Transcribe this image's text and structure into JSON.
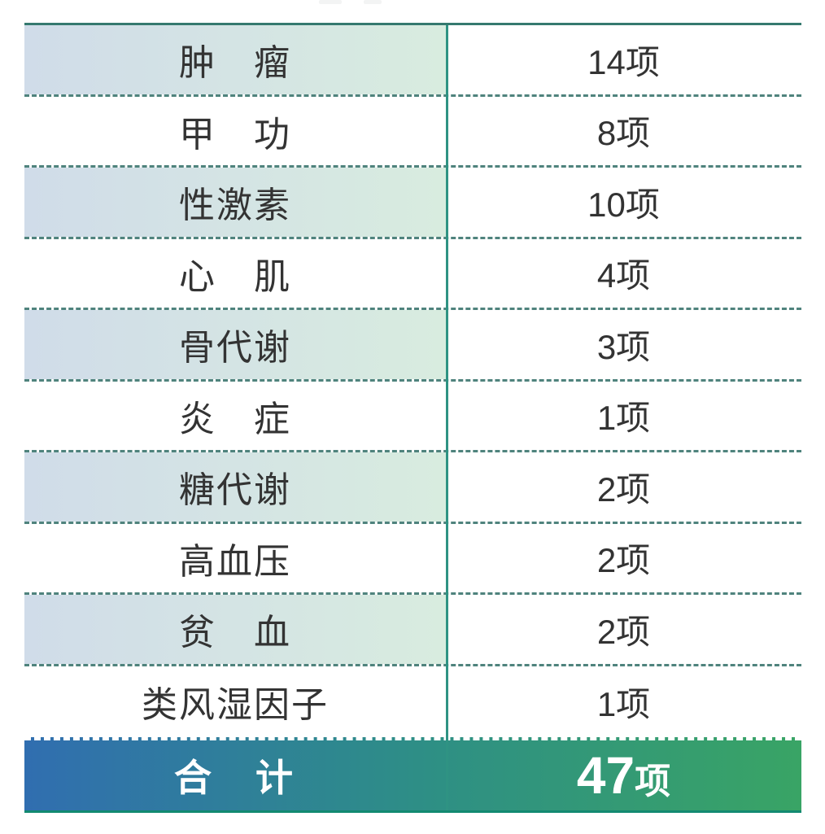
{
  "chart_data": {
    "type": "table",
    "title": "",
    "columns": [
      "category",
      "item_count"
    ],
    "rows": [
      {
        "label": "肿　瘤",
        "count": "14项",
        "count_value": 14,
        "shaded": true
      },
      {
        "label": "甲　功",
        "count": "8项",
        "count_value": 8,
        "shaded": false
      },
      {
        "label": "性激素",
        "count": "10项",
        "count_value": 10,
        "shaded": true
      },
      {
        "label": "心　肌",
        "count": "4项",
        "count_value": 4,
        "shaded": false
      },
      {
        "label": "骨代谢",
        "count": "3项",
        "count_value": 3,
        "shaded": true
      },
      {
        "label": "炎　症",
        "count": "1项",
        "count_value": 1,
        "shaded": false
      },
      {
        "label": "糖代谢",
        "count": "2项",
        "count_value": 2,
        "shaded": true
      },
      {
        "label": "高血压",
        "count": "2项",
        "count_value": 2,
        "shaded": false
      },
      {
        "label": "贫　血",
        "count": "2项",
        "count_value": 2,
        "shaded": true
      },
      {
        "label": "类风湿因子",
        "count": "1项",
        "count_value": 1,
        "shaded": false
      }
    ],
    "total": {
      "label": "合　计",
      "count_number": "47",
      "count_unit": "项",
      "count_value": 47
    }
  },
  "table": {
    "rows": [
      {
        "label": "肿　瘤",
        "count": "14项"
      },
      {
        "label": "甲　功",
        "count": "8项"
      },
      {
        "label": "性激素",
        "count": "10项"
      },
      {
        "label": "心　肌",
        "count": "4项"
      },
      {
        "label": "骨代谢",
        "count": "3项"
      },
      {
        "label": "炎　症",
        "count": "1项"
      },
      {
        "label": "糖代谢",
        "count": "2项"
      },
      {
        "label": "高血压",
        "count": "2项"
      },
      {
        "label": "贫　血",
        "count": "2项"
      },
      {
        "label": "类风湿因子",
        "count": "1项"
      }
    ],
    "total": {
      "label": "合　计",
      "count_number": "47",
      "count_unit": "项"
    }
  },
  "colors": {
    "top_border": "#35796f",
    "bottom_border": "#128a71",
    "column_divider": "#2f9383",
    "dashed_separator": "#4f837d",
    "shaded_gradient_start": "#d0dce9",
    "shaded_gradient_end": "#d8ecdf",
    "total_gradient_start": "#306eb0",
    "total_gradient_end": "#39a465",
    "body_text": "#333333",
    "total_text": "#ffffff"
  }
}
